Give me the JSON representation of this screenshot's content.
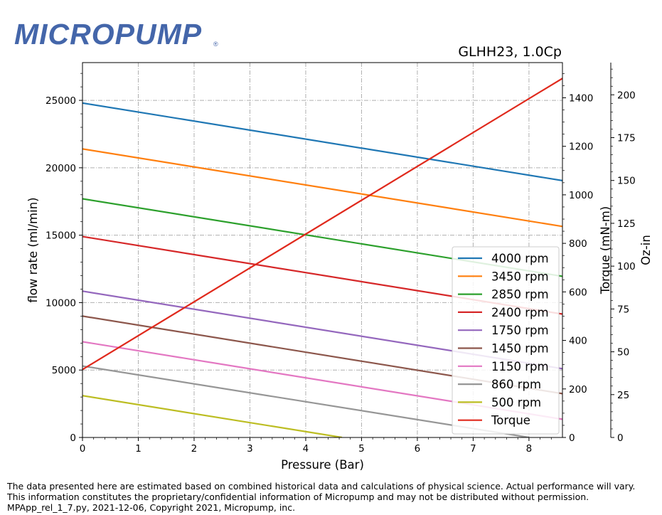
{
  "logo": {
    "text": "MICROPUMP",
    "registered": "®",
    "color": "#4466aa"
  },
  "footer": {
    "lines": [
      "The data presented here are estimated based on combined historical data and calculations of physical science.  Actual performance will vary.",
      "This information constitutes the proprietary/confidential information of Micropump and may not be distributed without permission.",
      "MPApp_rel_1_7.py, 2021-12-06, Copyright 2021, Micropump, inc."
    ]
  },
  "chart_data": {
    "type": "line",
    "title": "GLHH23,  1.0Cp",
    "xlabel": "Pressure (Bar)",
    "ylabel": "flow rate (ml/min)",
    "y2label": "Torque (mN-m)",
    "y3label": "Oz-in",
    "xlim": [
      0,
      8.6
    ],
    "ylim": [
      0,
      27800
    ],
    "y2lim": [
      0,
      1545
    ],
    "y3lim": [
      0,
      218.8
    ],
    "xticks": [
      0,
      1,
      2,
      3,
      4,
      5,
      6,
      7,
      8
    ],
    "yticks": [
      0,
      5000,
      10000,
      15000,
      20000,
      25000
    ],
    "y2ticks": [
      0,
      200,
      400,
      600,
      800,
      1000,
      1200,
      1400
    ],
    "y3ticks": [
      0,
      25,
      50,
      75,
      100,
      125,
      150,
      175,
      200
    ],
    "grid": true,
    "legend_position": "lower-right",
    "series": [
      {
        "name": "4000 rpm",
        "color": "#1f77b4",
        "axis": "flow",
        "x": [
          0,
          8.6
        ],
        "y": [
          24800,
          19050
        ]
      },
      {
        "name": "3450 rpm",
        "color": "#ff7f0e",
        "axis": "flow",
        "x": [
          0,
          8.6
        ],
        "y": [
          21400,
          15650
        ]
      },
      {
        "name": "2850 rpm",
        "color": "#2ca02c",
        "axis": "flow",
        "x": [
          0,
          8.6
        ],
        "y": [
          17700,
          11950
        ]
      },
      {
        "name": "2400 rpm",
        "color": "#d62728",
        "axis": "flow",
        "x": [
          0,
          8.6
        ],
        "y": [
          14900,
          9150
        ]
      },
      {
        "name": "1750 rpm",
        "color": "#9467bd",
        "axis": "flow",
        "x": [
          0,
          8.6
        ],
        "y": [
          10850,
          5100
        ]
      },
      {
        "name": "1450 rpm",
        "color": "#8c564b",
        "axis": "flow",
        "x": [
          0,
          8.6
        ],
        "y": [
          9000,
          3250
        ]
      },
      {
        "name": "1150 rpm",
        "color": "#e377c2",
        "axis": "flow",
        "x": [
          0,
          8.6
        ],
        "y": [
          7100,
          1350
        ]
      },
      {
        "name": "860 rpm",
        "color": "#969696",
        "axis": "flow",
        "x": [
          0,
          8.0
        ],
        "y": [
          5300,
          0
        ]
      },
      {
        "name": "500 rpm",
        "color": "#bcbd22",
        "axis": "flow",
        "x": [
          0,
          4.65
        ],
        "y": [
          3100,
          0
        ]
      },
      {
        "name": "Torque",
        "color": "#e0291c",
        "axis": "torque",
        "x": [
          0,
          8.6
        ],
        "y": [
          280,
          1480
        ]
      }
    ]
  }
}
